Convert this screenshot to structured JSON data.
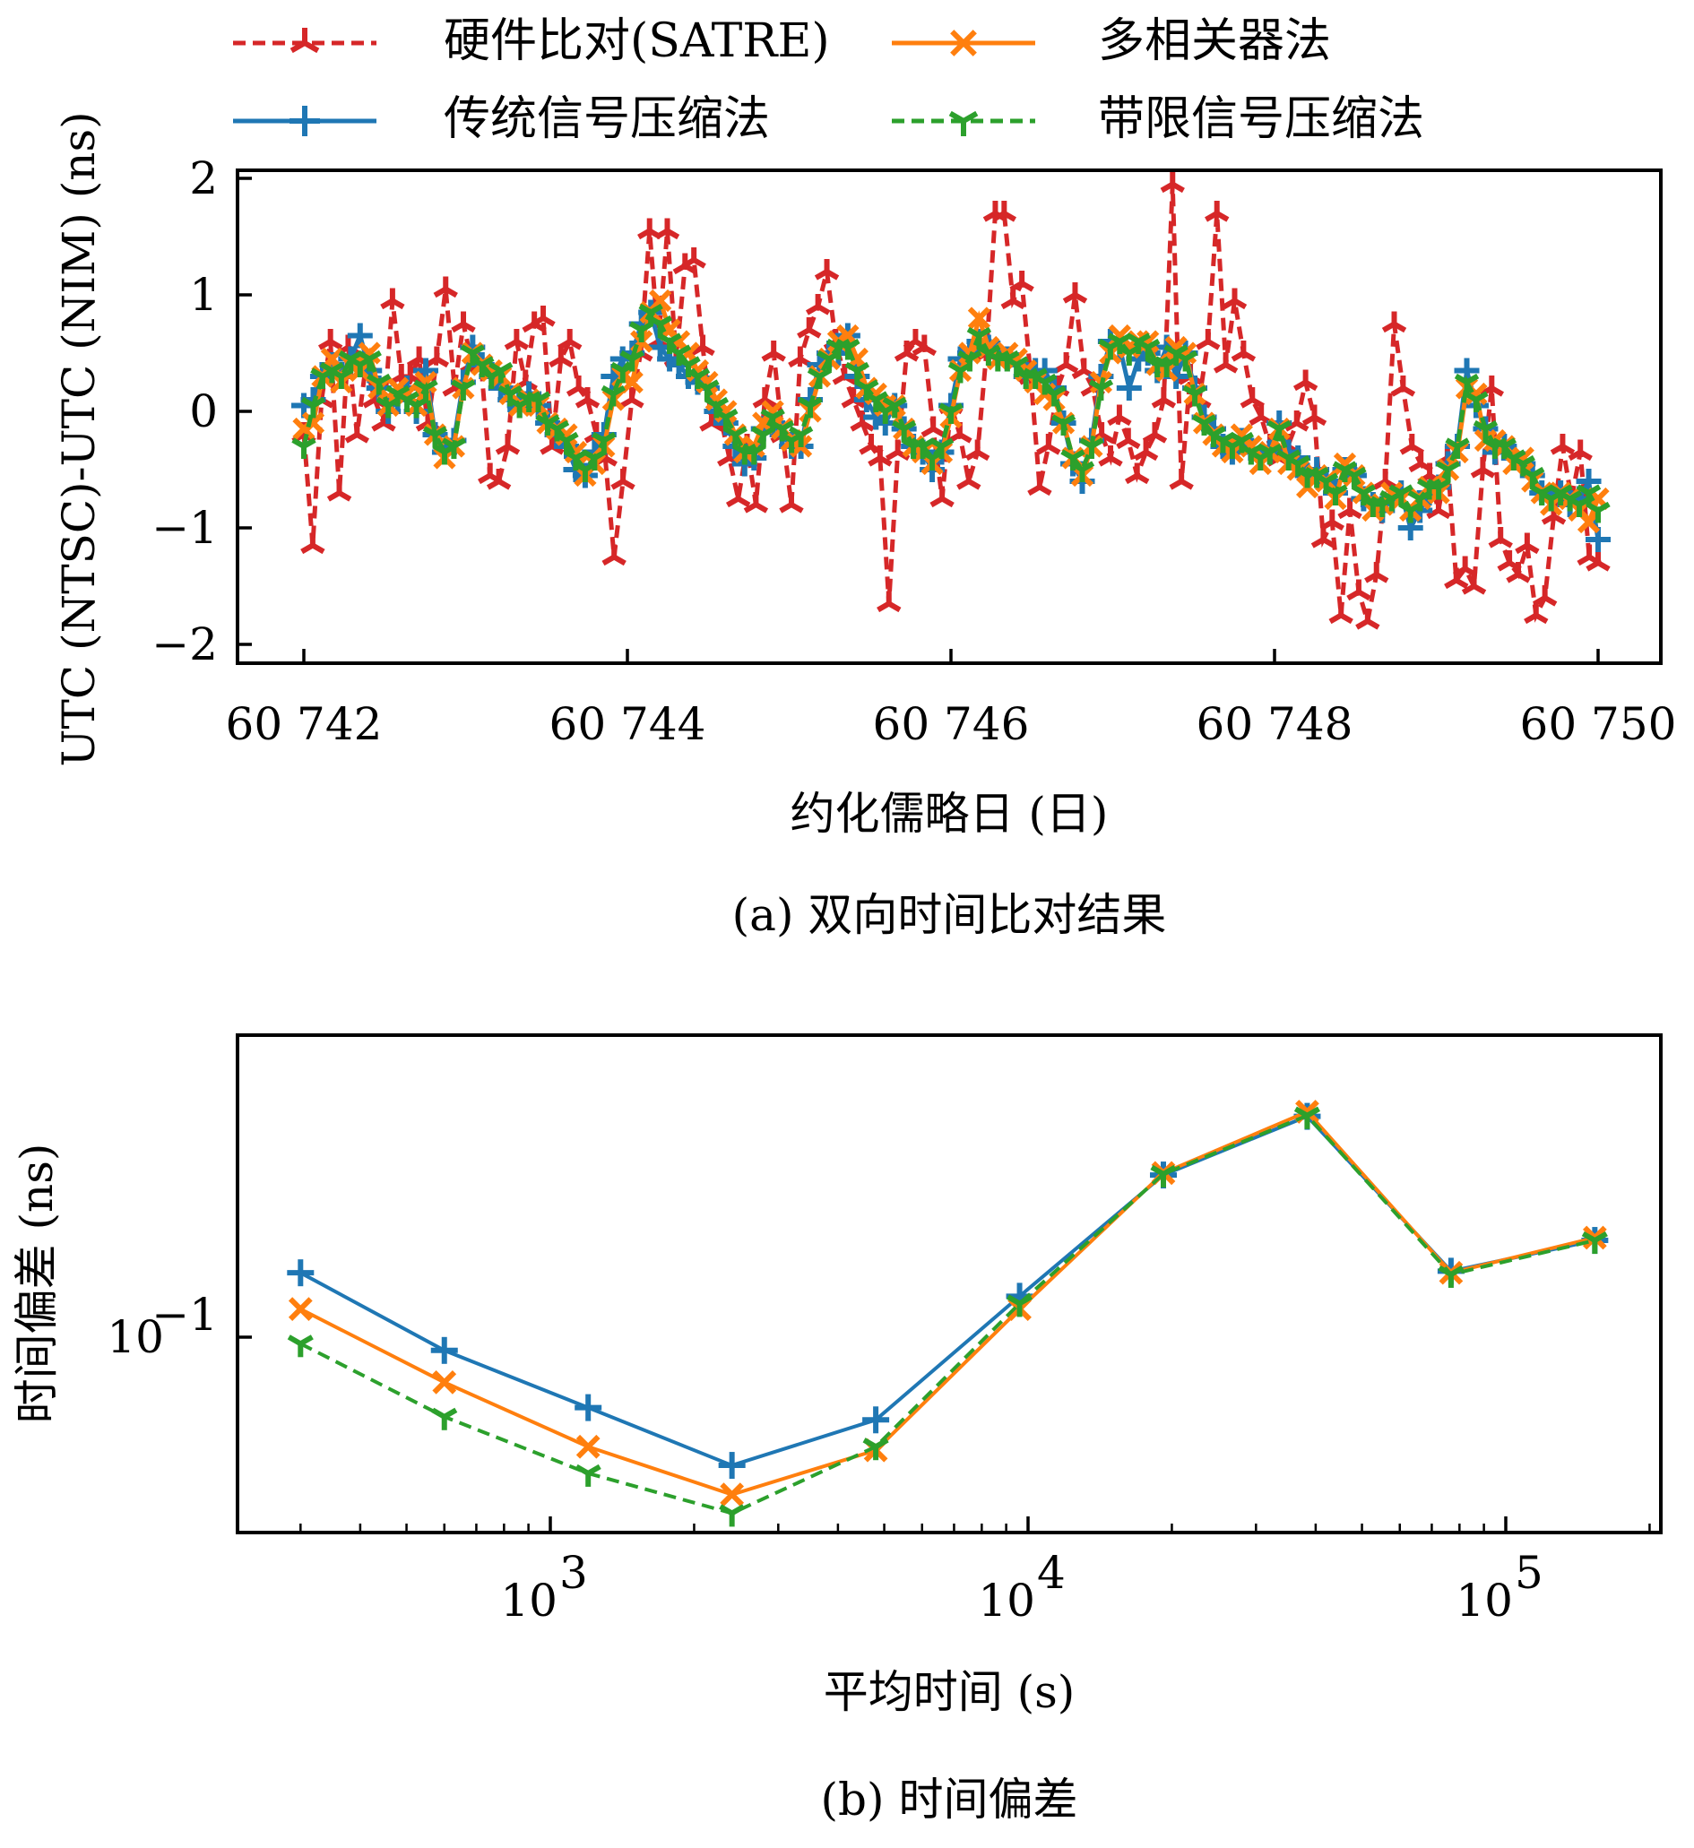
{
  "chart_data": [
    {
      "type": "line",
      "panel": "a",
      "caption": "(a) 双向时间比对结果",
      "xlabel": "约化儒略日 (日)",
      "ylabel": "UTC (NTSC)-UTC (NIM) (ns)",
      "xlim": [
        60741.6,
        60750.4
      ],
      "ylim": [
        -2.2,
        2.15
      ],
      "xticks": [
        60742,
        60744,
        60746,
        60748,
        60750
      ],
      "xtick_labels": [
        "60 742",
        "60 744",
        "60 746",
        "60 748",
        "60 750"
      ],
      "yticks": [
        2,
        1,
        0,
        -1,
        -2
      ],
      "ytick_labels": [
        "2",
        "1",
        "0",
        "−1",
        "−2"
      ],
      "grid": false,
      "legend": {
        "placement": "top (outside, 2 columns)",
        "entries": [
          {
            "label": "硬件比对(SATRE)",
            "series": 0
          },
          {
            "label": "多相关器法",
            "series": 1
          },
          {
            "label": "传统信号压缩法",
            "series": 2
          },
          {
            "label": "带限信号压缩法",
            "series": 3
          }
        ]
      },
      "x_start": 60742.0,
      "x_step": 0.08,
      "series": [
        {
          "name": "硬件比对(SATRE)",
          "color": "#d62728",
          "linestyle": "dashed",
          "marker": "tri_down",
          "values": [
            -0.2,
            -1.15,
            0.1,
            0.6,
            -0.7,
            0.55,
            -0.2,
            0.4,
            0.1,
            -0.1,
            0.95,
            0.3,
            0.3,
            0.45,
            -0.1,
            0.45,
            1.05,
            0.2,
            0.75,
            0.4,
            0.4,
            -0.55,
            -0.6,
            -0.3,
            0.6,
            0.25,
            0.75,
            0.8,
            -0.3,
            0.45,
            0.6,
            0.2,
            0.1,
            -0.2,
            -0.4,
            -1.25,
            -0.6,
            0.1,
            0.5,
            1.55,
            0.6,
            1.55,
            0.45,
            1.25,
            1.3,
            0.55,
            -0.1,
            -0.05,
            -0.4,
            -0.75,
            -0.3,
            -0.8,
            0.1,
            0.5,
            -0.2,
            -0.8,
            0.45,
            0.7,
            0.9,
            1.2,
            0.6,
            0.3,
            0.1,
            -0.1,
            -0.3,
            -0.4,
            -1.65,
            -0.35,
            0.5,
            0.6,
            0.55,
            -0.15,
            -0.75,
            0.05,
            -0.2,
            -0.6,
            -0.35,
            0.5,
            1.7,
            1.7,
            0.95,
            1.1,
            0.3,
            -0.65,
            -0.3,
            0.2,
            0.4,
            1.0,
            0.35,
            0.2,
            -0.2,
            -0.4,
            -0.05,
            -0.25,
            -0.55,
            -0.35,
            -0.2,
            0.1,
            1.95,
            -0.6,
            0.3,
            0.1,
            0.6,
            1.7,
            0.4,
            0.95,
            0.5,
            0.1,
            -0.05,
            -0.3,
            -0.4,
            -0.3,
            -0.1,
            0.25,
            -0.05,
            -1.1,
            -0.95,
            -1.75,
            -0.85,
            -1.55,
            -1.8,
            -1.4,
            -0.6,
            0.75,
            0.2,
            -0.3,
            -0.45,
            -0.55,
            -0.85,
            -0.4,
            -1.45,
            -1.35,
            -1.5,
            -0.5,
            0.2,
            -1.1,
            -1.3,
            -1.4,
            -1.15,
            -1.75,
            -1.6,
            -0.9,
            -0.3,
            -0.75,
            -0.35,
            -1.25,
            -1.3
          ]
        },
        {
          "name": "多相关器法",
          "color": "#ff7f0e",
          "linestyle": "solid",
          "marker": "x",
          "values": [
            -0.15,
            -0.1,
            0.3,
            0.45,
            0.25,
            0.4,
            0.35,
            0.5,
            0.2,
            0.05,
            0.2,
            0.15,
            0.05,
            0.25,
            -0.2,
            -0.4,
            -0.3,
            0.2,
            0.5,
            0.4,
            0.35,
            0.3,
            0.15,
            0.05,
            0.1,
            0.05,
            -0.1,
            -0.15,
            -0.2,
            -0.35,
            -0.55,
            -0.45,
            -0.3,
            0.1,
            0.3,
            0.25,
            0.6,
            0.85,
            0.95,
            0.7,
            0.6,
            0.5,
            0.35,
            0.25,
            0.1,
            0.0,
            -0.2,
            -0.35,
            -0.3,
            -0.1,
            0.0,
            -0.15,
            -0.25,
            -0.3,
            0.0,
            0.3,
            0.45,
            0.6,
            0.65,
            0.45,
            0.2,
            0.15,
            0.05,
            0.05,
            -0.15,
            -0.3,
            -0.35,
            -0.45,
            -0.35,
            -0.05,
            0.35,
            0.5,
            0.8,
            0.55,
            0.45,
            0.5,
            0.45,
            0.35,
            0.25,
            0.15,
            0.1,
            -0.1,
            -0.4,
            -0.55,
            -0.3,
            0.25,
            0.5,
            0.65,
            0.55,
            0.6,
            0.6,
            0.4,
            0.35,
            0.55,
            0.5,
            0.15,
            -0.1,
            -0.2,
            -0.3,
            -0.35,
            -0.2,
            -0.3,
            -0.45,
            -0.35,
            -0.15,
            -0.45,
            -0.5,
            -0.65,
            -0.55,
            -0.6,
            -0.75,
            -0.45,
            -0.55,
            -0.7,
            -0.85,
            -0.8,
            -0.7,
            -0.75,
            -0.85,
            -0.75,
            -0.65,
            -0.7,
            -0.5,
            -0.35,
            0.2,
            0.15,
            -0.25,
            -0.25,
            -0.3,
            -0.45,
            -0.4,
            -0.6,
            -0.7,
            -0.8,
            -0.7,
            -0.75,
            -0.85,
            -0.95,
            -0.75
          ]
        },
        {
          "name": "传统信号压缩法",
          "color": "#1f77b4",
          "linestyle": "solid",
          "marker": "plus",
          "values": [
            0.05,
            0.1,
            0.3,
            0.4,
            0.3,
            0.45,
            0.65,
            0.35,
            0.2,
            0.0,
            0.1,
            0.2,
            0.0,
            0.35,
            -0.2,
            -0.35,
            -0.25,
            0.25,
            0.55,
            0.4,
            0.3,
            0.2,
            0.1,
            0.05,
            0.15,
            0.05,
            -0.1,
            -0.2,
            -0.3,
            -0.5,
            -0.55,
            -0.35,
            -0.2,
            0.3,
            0.45,
            0.5,
            0.75,
            0.85,
            0.55,
            0.45,
            0.4,
            0.3,
            0.25,
            0.2,
            0.0,
            -0.1,
            -0.3,
            -0.45,
            -0.4,
            -0.15,
            -0.1,
            -0.2,
            -0.3,
            -0.3,
            0.1,
            0.4,
            0.5,
            0.5,
            0.65,
            0.3,
            0.1,
            -0.05,
            -0.1,
            0.05,
            -0.15,
            -0.3,
            -0.35,
            -0.5,
            -0.35,
            0.05,
            0.45,
            0.5,
            0.6,
            0.55,
            0.5,
            0.45,
            0.4,
            0.3,
            0.35,
            0.35,
            0.2,
            -0.1,
            -0.45,
            -0.6,
            -0.25,
            0.3,
            0.6,
            0.55,
            0.2,
            0.45,
            0.5,
            0.35,
            0.55,
            0.3,
            0.5,
            0.2,
            -0.05,
            -0.15,
            -0.3,
            -0.35,
            -0.25,
            -0.35,
            -0.4,
            -0.35,
            -0.1,
            -0.35,
            -0.4,
            -0.55,
            -0.5,
            -0.6,
            -0.7,
            -0.5,
            -0.55,
            -0.75,
            -0.8,
            -0.85,
            -0.75,
            -0.7,
            -1.0,
            -0.85,
            -0.7,
            -0.65,
            -0.45,
            -0.3,
            0.35,
            0.05,
            -0.15,
            -0.35,
            -0.3,
            -0.4,
            -0.45,
            -0.55,
            -0.7,
            -0.75,
            -0.7,
            -0.8,
            -0.75,
            -0.6,
            -1.1
          ]
        },
        {
          "name": "带限信号压缩法",
          "color": "#2ca02c",
          "linestyle": "dashed",
          "marker": "tri_down",
          "values": [
            -0.3,
            0.05,
            0.3,
            0.35,
            0.3,
            0.45,
            0.4,
            0.45,
            0.25,
            0.05,
            0.15,
            0.1,
            0.05,
            0.2,
            -0.2,
            -0.35,
            -0.3,
            0.2,
            0.5,
            0.4,
            0.3,
            0.35,
            0.15,
            0.05,
            0.1,
            0.1,
            -0.1,
            -0.15,
            -0.25,
            -0.4,
            -0.5,
            -0.4,
            -0.25,
            0.15,
            0.35,
            0.45,
            0.7,
            0.85,
            0.75,
            0.6,
            0.5,
            0.4,
            0.3,
            0.2,
            0.05,
            -0.05,
            -0.2,
            -0.35,
            -0.35,
            -0.2,
            -0.05,
            -0.15,
            -0.25,
            -0.2,
            0.05,
            0.3,
            0.45,
            0.55,
            0.55,
            0.35,
            0.2,
            0.1,
            0.0,
            0.05,
            -0.15,
            -0.3,
            -0.3,
            -0.4,
            -0.3,
            0.0,
            0.35,
            0.45,
            0.65,
            0.5,
            0.45,
            0.45,
            0.4,
            0.3,
            0.3,
            0.25,
            0.15,
            -0.1,
            -0.4,
            -0.5,
            -0.3,
            0.2,
            0.55,
            0.6,
            0.5,
            0.6,
            0.55,
            0.4,
            0.4,
            0.5,
            0.45,
            0.15,
            -0.1,
            -0.2,
            -0.25,
            -0.3,
            -0.25,
            -0.35,
            -0.4,
            -0.35,
            -0.15,
            -0.4,
            -0.45,
            -0.55,
            -0.55,
            -0.6,
            -0.7,
            -0.5,
            -0.55,
            -0.7,
            -0.8,
            -0.8,
            -0.75,
            -0.7,
            -0.85,
            -0.75,
            -0.65,
            -0.65,
            -0.5,
            -0.3,
            0.25,
            0.1,
            -0.15,
            -0.3,
            -0.3,
            -0.4,
            -0.45,
            -0.55,
            -0.7,
            -0.75,
            -0.7,
            -0.75,
            -0.8,
            -0.7,
            -0.85
          ]
        }
      ]
    },
    {
      "type": "line",
      "panel": "b",
      "caption": "(b) 时间偏差",
      "xlabel": "平均时间 (s)",
      "ylabel": "时间偏差 (ns)",
      "xscale": "log",
      "yscale": "log",
      "xlim": [
        200,
        200000
      ],
      "ylim": [
        0.04,
        0.41
      ],
      "xticks": [
        1000,
        10000,
        100000
      ],
      "xtick_labels": [
        "10^3",
        "10^4",
        "10^5"
      ],
      "yticks": [
        0.1
      ],
      "ytick_labels": [
        "10^-1"
      ],
      "grid": false,
      "x": [
        300,
        600,
        1200,
        2400,
        4800,
        9600,
        19200,
        38400,
        76800,
        153600
      ],
      "series": [
        {
          "name": "传统信号压缩法",
          "color": "#1f77b4",
          "linestyle": "solid",
          "marker": "plus",
          "values": [
            0.135,
            0.094,
            0.072,
            0.055,
            0.068,
            0.121,
            0.213,
            0.28,
            0.136,
            0.157
          ]
        },
        {
          "name": "多相关器法",
          "color": "#ff7f0e",
          "linestyle": "solid",
          "marker": "x",
          "values": [
            0.114,
            0.081,
            0.06,
            0.048,
            0.059,
            0.114,
            0.215,
            0.286,
            0.135,
            0.159
          ]
        },
        {
          "name": "带限信号压缩法",
          "color": "#2ca02c",
          "linestyle": "dashed",
          "marker": "tri_down",
          "values": [
            0.097,
            0.069,
            0.053,
            0.044,
            0.06,
            0.117,
            0.214,
            0.281,
            0.134,
            0.157
          ]
        }
      ]
    }
  ]
}
